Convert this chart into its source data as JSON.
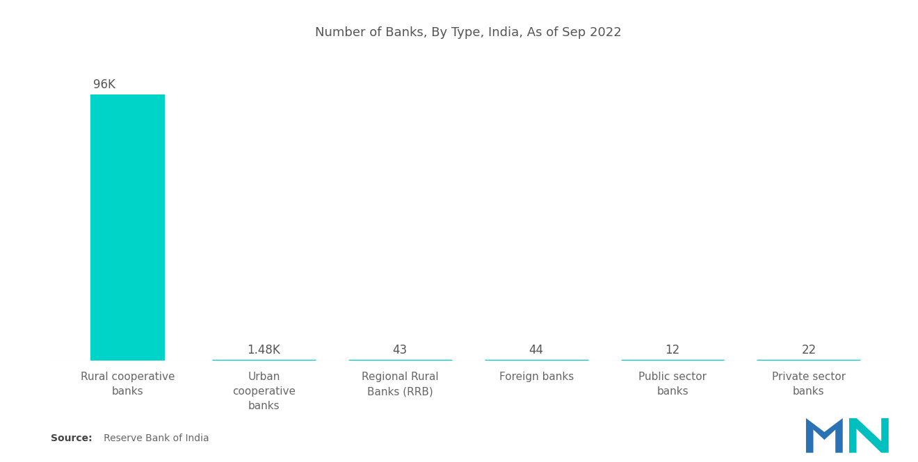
{
  "title": "Number of Banks, By Type, India, As of Sep 2022",
  "categories": [
    "Rural cooperative\nbanks",
    "Urban\ncooperative\nbanks",
    "Regional Rural\nBanks (RRB)",
    "Foreign banks",
    "Public sector\nbanks",
    "Private sector\nbanks"
  ],
  "values": [
    96000,
    1480,
    43,
    44,
    12,
    22
  ],
  "labels": [
    "96K",
    "1.48K",
    "43",
    "44",
    "12",
    "22"
  ],
  "bar_color_main": "#00D4C8",
  "line_color": "#00C8C8",
  "background_color": "#ffffff",
  "title_fontsize": 13,
  "label_fontsize": 12,
  "tick_fontsize": 11,
  "source_bold": "Source:",
  "source_rest": "   Reserve Bank of India",
  "logo_blue": "#2B72B5",
  "logo_teal": "#00BFBF",
  "ylim_max": 110000
}
